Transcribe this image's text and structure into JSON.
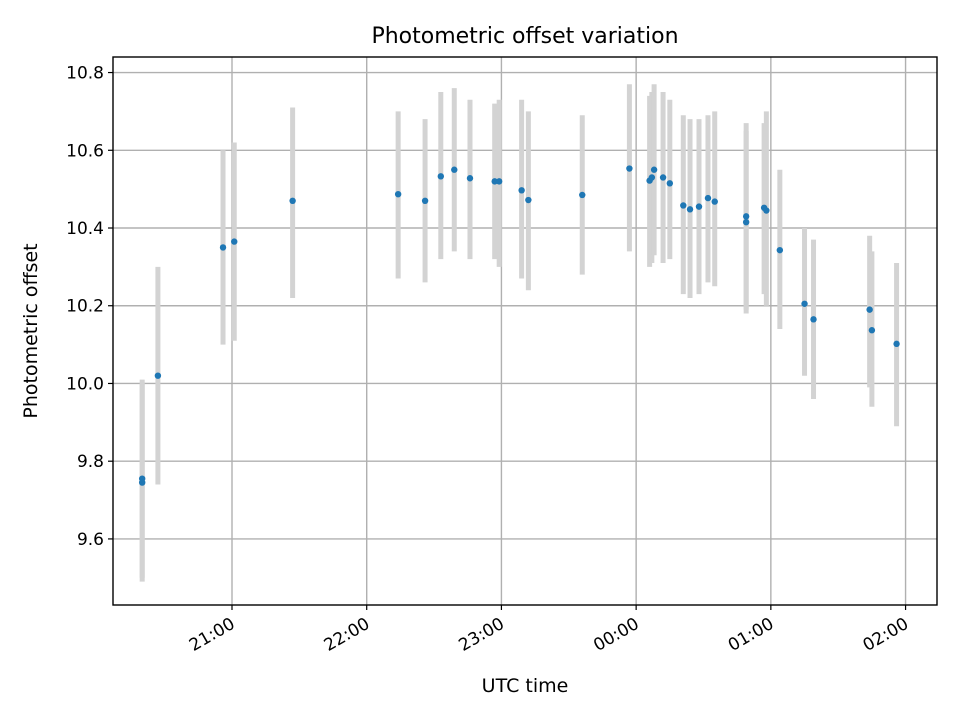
{
  "chart_data": {
    "type": "scatter",
    "title": "Photometric offset variation",
    "xlabel": "UTC time",
    "ylabel": "Photometric offset",
    "grid": true,
    "x_unit": "UTC",
    "xlim": [
      "20:07",
      "02:14"
    ],
    "ylim": [
      9.43,
      10.84
    ],
    "x_ticks": [
      "21:00",
      "22:00",
      "23:00",
      "00:00",
      "01:00",
      "02:00"
    ],
    "y_ticks": [
      "9.6",
      "9.8",
      "10.0",
      "10.2",
      "10.4",
      "10.6",
      "10.8"
    ],
    "point_color": "#1f77b4",
    "errorbar_color": "#d3d3d3",
    "points": [
      {
        "x": "20:20",
        "y": 9.755,
        "low": 9.5,
        "high": 10.01
      },
      {
        "x": "20:20",
        "y": 9.745,
        "low": 9.49,
        "high": 10.0
      },
      {
        "x": "20:27",
        "y": 10.02,
        "low": 9.74,
        "high": 10.3
      },
      {
        "x": "20:56",
        "y": 10.35,
        "low": 10.1,
        "high": 10.6
      },
      {
        "x": "21:01",
        "y": 10.365,
        "low": 10.11,
        "high": 10.62
      },
      {
        "x": "21:27",
        "y": 10.47,
        "low": 10.22,
        "high": 10.71
      },
      {
        "x": "22:14",
        "y": 10.487,
        "low": 10.27,
        "high": 10.7
      },
      {
        "x": "22:26",
        "y": 10.47,
        "low": 10.26,
        "high": 10.68
      },
      {
        "x": "22:33",
        "y": 10.533,
        "low": 10.32,
        "high": 10.75
      },
      {
        "x": "22:39",
        "y": 10.55,
        "low": 10.34,
        "high": 10.76
      },
      {
        "x": "22:46",
        "y": 10.528,
        "low": 10.32,
        "high": 10.73
      },
      {
        "x": "22:57",
        "y": 10.52,
        "low": 10.32,
        "high": 10.72
      },
      {
        "x": "22:59",
        "y": 10.52,
        "low": 10.3,
        "high": 10.73
      },
      {
        "x": "23:09",
        "y": 10.497,
        "low": 10.27,
        "high": 10.73
      },
      {
        "x": "23:12",
        "y": 10.472,
        "low": 10.24,
        "high": 10.7
      },
      {
        "x": "23:36",
        "y": 10.485,
        "low": 10.28,
        "high": 10.69
      },
      {
        "x": "23:57",
        "y": 10.553,
        "low": 10.34,
        "high": 10.77
      },
      {
        "x": "00:06",
        "y": 10.522,
        "low": 10.3,
        "high": 10.74
      },
      {
        "x": "00:07",
        "y": 10.53,
        "low": 10.31,
        "high": 10.75
      },
      {
        "x": "00:08",
        "y": 10.55,
        "low": 10.33,
        "high": 10.77
      },
      {
        "x": "00:12",
        "y": 10.53,
        "low": 10.31,
        "high": 10.75
      },
      {
        "x": "00:15",
        "y": 10.515,
        "low": 10.32,
        "high": 10.73
      },
      {
        "x": "00:21",
        "y": 10.458,
        "low": 10.23,
        "high": 10.69
      },
      {
        "x": "00:24",
        "y": 10.448,
        "low": 10.22,
        "high": 10.68
      },
      {
        "x": "00:28",
        "y": 10.455,
        "low": 10.23,
        "high": 10.68
      },
      {
        "x": "00:32",
        "y": 10.477,
        "low": 10.26,
        "high": 10.69
      },
      {
        "x": "00:35",
        "y": 10.468,
        "low": 10.25,
        "high": 10.7
      },
      {
        "x": "00:49",
        "y": 10.415,
        "low": 10.18,
        "high": 10.65
      },
      {
        "x": "00:49",
        "y": 10.43,
        "low": 10.19,
        "high": 10.67
      },
      {
        "x": "00:57",
        "y": 10.452,
        "low": 10.23,
        "high": 10.67
      },
      {
        "x": "00:58",
        "y": 10.445,
        "low": 10.2,
        "high": 10.7
      },
      {
        "x": "01:04",
        "y": 10.343,
        "low": 10.14,
        "high": 10.55
      },
      {
        "x": "01:15",
        "y": 10.205,
        "low": 10.02,
        "high": 10.4
      },
      {
        "x": "01:19",
        "y": 10.165,
        "low": 9.96,
        "high": 10.37
      },
      {
        "x": "01:44",
        "y": 10.19,
        "low": 9.99,
        "high": 10.38
      },
      {
        "x": "01:45",
        "y": 10.137,
        "low": 9.94,
        "high": 10.34
      },
      {
        "x": "01:56",
        "y": 10.102,
        "low": 9.89,
        "high": 10.31
      }
    ]
  }
}
